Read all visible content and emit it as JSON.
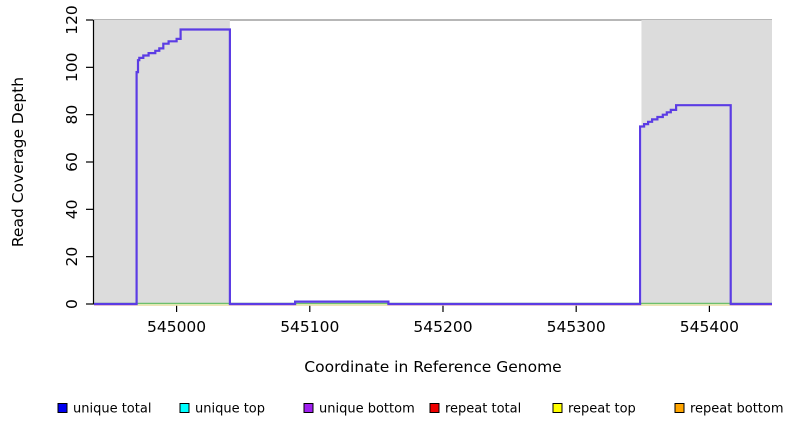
{
  "chart_data": {
    "type": "line",
    "title": "",
    "xlabel": "Coordinate in Reference Genome",
    "ylabel": "Read Coverage Depth",
    "xlim": [
      544938,
      545447
    ],
    "ylim": [
      0,
      120
    ],
    "xticks": [
      545000,
      545100,
      545200,
      545300,
      545400
    ],
    "yticks": [
      0,
      20,
      40,
      60,
      80,
      100,
      120
    ],
    "grid": false,
    "legend_position": "bottom",
    "background": "#ffffff",
    "top_border_color": "#8c8c8c",
    "axis_color": "#000000",
    "shaded_regions": [
      {
        "name": "left-masked-region",
        "x0": 544938,
        "x1": 545040,
        "color": "#dcdcdc"
      },
      {
        "name": "right-masked-region",
        "x0": 545349,
        "x1": 545447,
        "color": "#dcdcdc"
      }
    ],
    "series": [
      {
        "name": "unique total",
        "legend_color": "#0000f0",
        "drawn_color": "#5b3ce4",
        "note": "overplotted with unique bottom, visible as blue-violet step curve",
        "step_points": [
          [
            544938,
            0
          ],
          [
            544970,
            0
          ],
          [
            544970,
            98
          ],
          [
            544971,
            103
          ],
          [
            544972,
            104
          ],
          [
            544975,
            105
          ],
          [
            544979,
            106
          ],
          [
            544984,
            107
          ],
          [
            544987,
            108
          ],
          [
            544990,
            110
          ],
          [
            544994,
            111
          ],
          [
            545000,
            112
          ],
          [
            545003,
            116
          ],
          [
            545040,
            116
          ],
          [
            545040,
            0
          ],
          [
            545089,
            0
          ],
          [
            545089,
            1
          ],
          [
            545159,
            1
          ],
          [
            545159,
            0
          ],
          [
            545348,
            0
          ],
          [
            545348,
            75
          ],
          [
            545351,
            76
          ],
          [
            545354,
            77
          ],
          [
            545357,
            78
          ],
          [
            545361,
            79
          ],
          [
            545365,
            80
          ],
          [
            545368,
            81
          ],
          [
            545371,
            82
          ],
          [
            545375,
            84
          ],
          [
            545416,
            84
          ],
          [
            545416,
            0
          ],
          [
            545447,
            0
          ]
        ]
      },
      {
        "name": "unique bottom",
        "legend_color": "#a020f0",
        "same_as": "unique total"
      },
      {
        "name": "unique top",
        "legend_color": "#00ffff",
        "constant_value": 0,
        "drawn_baseline_color": "#6dbf6d"
      },
      {
        "name": "repeat total",
        "legend_color": "#ee0000",
        "constant_value": 0,
        "drawn_baseline_color": "#f2bcbc"
      },
      {
        "name": "repeat top",
        "legend_color": "#ffff00",
        "constant_value": 0,
        "drawn_baseline_color": "#e8e8a0"
      },
      {
        "name": "repeat bottom",
        "legend_color": "#ffa500",
        "constant_value": 0
      }
    ],
    "baseline_yellow_ranges": [
      [
        544970,
        545040
      ],
      [
        545089,
        545159
      ],
      [
        545348,
        545416
      ]
    ]
  },
  "legend": {
    "items": [
      {
        "label": "unique total",
        "color": "#0000f0"
      },
      {
        "label": "unique top",
        "color": "#00ffff"
      },
      {
        "label": "unique bottom",
        "color": "#a020f0"
      },
      {
        "label": "repeat total",
        "color": "#ee0000"
      },
      {
        "label": "repeat top",
        "color": "#ffff00"
      },
      {
        "label": "repeat bottom",
        "color": "#ffa500"
      }
    ]
  }
}
